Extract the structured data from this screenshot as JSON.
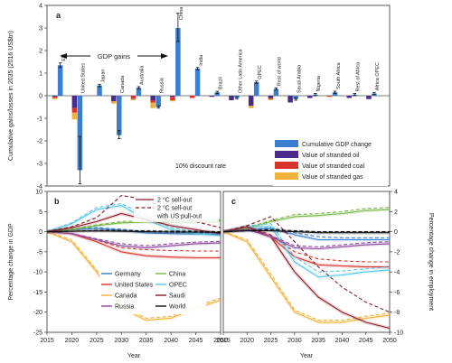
{
  "panel_a": {
    "label": "a",
    "ylabel": "Cumulative gains/losses in 2035 (2016 US$tn)",
    "annotation": "GDP gains",
    "discount": "10% discount rate",
    "yticks": [
      "4",
      "3",
      "2",
      "1",
      "0",
      "-1",
      "-2",
      "-3",
      "-4"
    ],
    "legend": [
      {
        "label": "Cumulative GDP change",
        "color": "#3a7fcf"
      },
      {
        "label": "Value of stranded oil",
        "color": "#4a2a8a"
      },
      {
        "label": "Value of stranded coal",
        "color": "#d9342b"
      },
      {
        "label": "Value of stranded gas",
        "color": "#f0b23a"
      }
    ]
  },
  "panel_b": {
    "label": "b",
    "ylabel": "Percentage change in GDP",
    "xlabel": "Year",
    "yticks": [
      "10",
      "5",
      "0",
      "-5",
      "-10",
      "-15",
      "-20",
      "-25"
    ],
    "xticks": [
      "2015",
      "2020",
      "2025",
      "2030",
      "2035",
      "2040",
      "2045",
      "2050"
    ],
    "legend_top": [
      {
        "label": "2 °C sell-out",
        "style": "solid"
      },
      {
        "label": "2 °C sell-out",
        "style": "dashed"
      },
      {
        "label": "with US pull-out",
        "style": "none"
      }
    ],
    "legend_regions": [
      {
        "label": "Germany",
        "color": "#3a7fcf"
      },
      {
        "label": "China",
        "color": "#7ab648"
      },
      {
        "label": "United States",
        "color": "#d9342b"
      },
      {
        "label": "OPEC",
        "color": "#5bc8e8"
      },
      {
        "label": "Canada",
        "color": "#f0b23a"
      },
      {
        "label": "Saudi",
        "color": "#8a1c2a"
      },
      {
        "label": "Russia",
        "color": "#8a4a9a"
      },
      {
        "label": "World",
        "color": "#111111"
      }
    ]
  },
  "panel_c": {
    "label": "c",
    "ylabel": "Percentage change in employment",
    "xlabel": "Year",
    "yticks": [
      "4",
      "2",
      "0",
      "-2",
      "-4",
      "-6",
      "-8",
      "-10"
    ],
    "xticks": [
      "2015",
      "2020",
      "2025",
      "2030",
      "2035",
      "2040",
      "2045",
      "2050"
    ]
  },
  "chart_data": [
    {
      "type": "bar",
      "title": "",
      "ylabel": "Cumulative gains/losses in 2035 (2016 US$tn)",
      "ylim": [
        -4,
        4
      ],
      "categories": [
        "EU",
        "United States",
        "Japan",
        "Canada",
        "Australia",
        "Russia",
        "China",
        "India",
        "Brazil",
        "Other Latin America",
        "OPEC",
        "Rest of world",
        "Saudi Arabia",
        "Nigeria",
        "South Africa",
        "Rest of Africa",
        "Africa OPEC"
      ],
      "series": [
        {
          "name": "Cumulative GDP change",
          "color": "#3a7fcf",
          "values": [
            1.35,
            -3.3,
            0.45,
            -1.75,
            0.35,
            -0.5,
            3.0,
            1.2,
            0.15,
            -0.1,
            0.6,
            0.3,
            -0.15,
            0.05,
            0.15,
            0.05,
            0.1
          ]
        },
        {
          "name": "Value of stranded oil",
          "color": "#4a2a8a",
          "values": [
            -0.05,
            -0.55,
            0.0,
            -0.25,
            0.0,
            -0.2,
            -0.05,
            0.0,
            -0.05,
            -0.2,
            -0.45,
            -0.1,
            -0.3,
            -0.1,
            0.0,
            -0.1,
            -0.15
          ]
        },
        {
          "name": "Value of stranded coal",
          "color": "#d9342b",
          "values": [
            -0.05,
            -0.2,
            0.0,
            0.0,
            -0.15,
            -0.1,
            -0.15,
            -0.1,
            0.0,
            0.0,
            0.0,
            -0.05,
            0.0,
            0.0,
            -0.05,
            0.0,
            0.0
          ]
        },
        {
          "name": "Value of stranded gas",
          "color": "#f0b23a",
          "values": [
            -0.05,
            -0.3,
            0.0,
            -0.1,
            -0.05,
            -0.25,
            -0.05,
            0.0,
            0.0,
            0.0,
            -0.1,
            -0.05,
            0.0,
            0.0,
            0.0,
            0.0,
            0.0
          ]
        }
      ],
      "error_bars": [
        [
          1.25,
          1.45
        ],
        [
          -3.9,
          -1.8
        ],
        [
          0.4,
          0.5
        ],
        [
          -1.9,
          -1.55
        ],
        [
          0.3,
          0.4
        ],
        [
          -0.55,
          -0.45
        ],
        [
          2.4,
          3.65
        ],
        [
          1.15,
          1.25
        ],
        [
          0.1,
          0.2
        ],
        [
          -0.15,
          -0.05
        ],
        [
          0.55,
          0.65
        ],
        [
          0.25,
          0.35
        ],
        [
          -0.2,
          -0.1
        ],
        [
          0.0,
          0.1
        ],
        [
          0.1,
          0.2
        ],
        [
          0.0,
          0.1
        ],
        [
          0.05,
          0.15
        ]
      ]
    },
    {
      "type": "line",
      "xlabel": "Year",
      "ylabel": "Percentage change in GDP",
      "xlim": [
        2015,
        2050
      ],
      "ylim": [
        -25,
        10
      ],
      "x": [
        2015,
        2020,
        2025,
        2030,
        2035,
        2040,
        2045,
        2050
      ],
      "series": [
        {
          "name": "Germany",
          "style": "solid",
          "color": "#3a7fcf",
          "values": [
            0,
            0.5,
            0.8,
            0.3,
            -0.3,
            -0.5,
            -0.6,
            -0.7
          ]
        },
        {
          "name": "Germany",
          "style": "dashed",
          "color": "#3a7fcf",
          "values": [
            0,
            0.6,
            1.0,
            0.6,
            0.0,
            -0.2,
            -0.3,
            -0.4
          ]
        },
        {
          "name": "China",
          "style": "solid",
          "color": "#7ab648",
          "values": [
            0,
            0.5,
            1.5,
            2.2,
            2.4,
            2.5,
            2.5,
            2.6
          ]
        },
        {
          "name": "China",
          "style": "dashed",
          "color": "#7ab648",
          "values": [
            0,
            0.6,
            1.7,
            2.5,
            2.7,
            2.8,
            2.8,
            2.9
          ]
        },
        {
          "name": "United States",
          "style": "solid",
          "color": "#d9342b",
          "values": [
            0,
            -0.5,
            -2.5,
            -5.0,
            -6.0,
            -6.3,
            -6.5,
            -6.5
          ]
        },
        {
          "name": "United States",
          "style": "dashed",
          "color": "#d9342b",
          "values": [
            0,
            -0.5,
            -2.0,
            -4.0,
            -4.5,
            -4.7,
            -4.8,
            -4.8
          ]
        },
        {
          "name": "OPEC",
          "style": "solid",
          "color": "#5bc8e8",
          "values": [
            0,
            2.0,
            5.5,
            6.5,
            3.0,
            0.5,
            -0.5,
            -1.0
          ]
        },
        {
          "name": "OPEC",
          "style": "dashed",
          "color": "#5bc8e8",
          "values": [
            0,
            2.2,
            6.0,
            7.0,
            4.0,
            1.0,
            0.0,
            -0.5
          ]
        },
        {
          "name": "Canada",
          "style": "solid",
          "color": "#f0b23a",
          "values": [
            0,
            -2.5,
            -10.0,
            -19.0,
            -22.0,
            -21.5,
            -19.0,
            -17.0
          ]
        },
        {
          "name": "Canada",
          "style": "dashed",
          "color": "#f0b23a",
          "values": [
            0,
            -2.0,
            -9.5,
            -18.5,
            -21.5,
            -21.0,
            -18.5,
            -16.5
          ]
        },
        {
          "name": "Saudi",
          "style": "solid",
          "color": "#8a1c2a",
          "values": [
            0,
            1.0,
            2.5,
            4.5,
            3.0,
            1.5,
            0.5,
            -0.5
          ]
        },
        {
          "name": "Saudi",
          "style": "dashed",
          "color": "#8a1c2a",
          "values": [
            0,
            1.2,
            3.5,
            9.0,
            8.0,
            5.0,
            2.5,
            1.0
          ]
        },
        {
          "name": "Russia",
          "style": "solid",
          "color": "#8a4a9a",
          "values": [
            0,
            -0.5,
            -2.0,
            -3.5,
            -4.0,
            -3.5,
            -3.0,
            -2.8
          ]
        },
        {
          "name": "Russia",
          "style": "dashed",
          "color": "#8a4a9a",
          "values": [
            0,
            -0.5,
            -1.8,
            -3.0,
            -3.5,
            -3.0,
            -2.6,
            -2.4
          ]
        },
        {
          "name": "World",
          "style": "solid",
          "color": "#111111",
          "values": [
            0,
            0.1,
            0.2,
            0.1,
            0.0,
            -0.1,
            -0.1,
            -0.2
          ]
        },
        {
          "name": "World",
          "style": "dashed",
          "color": "#111111",
          "values": [
            0,
            0.1,
            0.3,
            0.3,
            0.2,
            0.1,
            0.1,
            0.0
          ]
        }
      ]
    },
    {
      "type": "line",
      "xlabel": "Year",
      "ylabel": "Percentage change in employment",
      "xlim": [
        2015,
        2050
      ],
      "ylim": [
        -10,
        4
      ],
      "x": [
        2015,
        2020,
        2025,
        2030,
        2035,
        2040,
        2045,
        2050
      ],
      "series": [
        {
          "name": "Germany",
          "style": "solid",
          "color": "#3a7fcf",
          "values": [
            0,
            0.2,
            0.3,
            -0.3,
            -0.8,
            -0.8,
            -0.8,
            -0.8
          ]
        },
        {
          "name": "Germany",
          "style": "dashed",
          "color": "#3a7fcf",
          "values": [
            0,
            0.2,
            0.4,
            -0.1,
            -0.5,
            -0.6,
            -0.6,
            -0.6
          ]
        },
        {
          "name": "China",
          "style": "solid",
          "color": "#7ab648",
          "values": [
            0,
            0.3,
            1.0,
            1.5,
            1.6,
            1.8,
            2.1,
            2.2
          ]
        },
        {
          "name": "China",
          "style": "dashed",
          "color": "#7ab648",
          "values": [
            0,
            0.4,
            1.1,
            1.7,
            1.8,
            2.0,
            2.3,
            2.4
          ]
        },
        {
          "name": "United States",
          "style": "solid",
          "color": "#d9342b",
          "values": [
            0,
            0.5,
            -0.5,
            -2.5,
            -3.3,
            -3.4,
            -3.5,
            -3.5
          ]
        },
        {
          "name": "United States",
          "style": "dashed",
          "color": "#d9342b",
          "values": [
            0,
            0.5,
            -0.3,
            -2.0,
            -2.7,
            -2.9,
            -3.0,
            -3.0
          ]
        },
        {
          "name": "OPEC",
          "style": "solid",
          "color": "#5bc8e8",
          "values": [
            0,
            0.5,
            0.5,
            -3.0,
            -4.5,
            -4.3,
            -4.0,
            -3.8
          ]
        },
        {
          "name": "OPEC",
          "style": "dashed",
          "color": "#5bc8e8",
          "values": [
            0,
            0.6,
            0.8,
            -2.5,
            -4.0,
            -3.9,
            -3.7,
            -3.5
          ]
        },
        {
          "name": "Canada",
          "style": "solid",
          "color": "#f0b23a",
          "values": [
            0,
            -1.0,
            -4.5,
            -8.0,
            -9.0,
            -9.0,
            -8.6,
            -8.3
          ]
        },
        {
          "name": "Canada",
          "style": "dashed",
          "color": "#f0b23a",
          "values": [
            0,
            -0.8,
            -4.2,
            -7.8,
            -8.8,
            -8.8,
            -8.4,
            -8.1
          ]
        },
        {
          "name": "Saudi",
          "style": "solid",
          "color": "#8a1c2a",
          "values": [
            0,
            0.5,
            -0.5,
            -4.0,
            -6.5,
            -8.0,
            -9.0,
            -9.6
          ]
        },
        {
          "name": "Saudi",
          "style": "dashed",
          "color": "#8a1c2a",
          "values": [
            0,
            0.6,
            1.5,
            -1.0,
            -3.5,
            -5.5,
            -7.0,
            -8.0
          ]
        },
        {
          "name": "Russia",
          "style": "solid",
          "color": "#8a4a9a",
          "values": [
            0,
            0.2,
            -0.5,
            -1.6,
            -1.7,
            -1.5,
            -1.3,
            -1.2
          ]
        },
        {
          "name": "Russia",
          "style": "dashed",
          "color": "#8a4a9a",
          "values": [
            0,
            0.2,
            -0.4,
            -1.4,
            -1.5,
            -1.3,
            -1.1,
            -1.0
          ]
        },
        {
          "name": "World",
          "style": "solid",
          "color": "#111111",
          "values": [
            0,
            0.1,
            0.1,
            0.0,
            -0.1,
            -0.1,
            -0.1,
            -0.1
          ]
        },
        {
          "name": "World",
          "style": "dashed",
          "color": "#111111",
          "values": [
            0,
            0.1,
            0.2,
            0.1,
            0.0,
            0.0,
            0.0,
            0.0
          ]
        }
      ]
    }
  ]
}
